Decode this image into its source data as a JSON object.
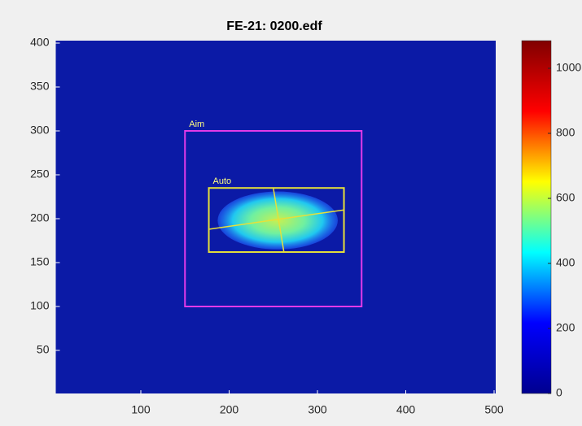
{
  "chart_data": {
    "type": "image",
    "title": "FE-21: 0200.edf",
    "xlim": [
      0,
      500
    ],
    "xticks": [
      100,
      200,
      300,
      400,
      500
    ],
    "ylim": [
      0,
      400
    ],
    "yticks": [
      50,
      100,
      150,
      200,
      250,
      300,
      350,
      400
    ],
    "background": "#0b1aa6",
    "colorbar": {
      "clim": [
        0,
        1085
      ],
      "ticks": [
        0,
        200,
        400,
        600,
        800,
        1000
      ],
      "colormap": [
        "#00008f",
        "#0000ff",
        "#00ffff",
        "#ffff00",
        "#ff0000",
        "#800000"
      ]
    },
    "spot": {
      "center": [
        255,
        198
      ],
      "radius": [
        68,
        33
      ]
    },
    "rectangles": [
      {
        "label": "Aim",
        "x": [
          150,
          350
        ],
        "y": [
          100,
          300
        ],
        "color": "#e33ae8"
      },
      {
        "label": "Auto",
        "x": [
          177,
          330
        ],
        "y": [
          162,
          235
        ],
        "color": "#e6e03a"
      }
    ],
    "lines": [
      {
        "x": [
          177,
          330
        ],
        "y": [
          188,
          210
        ],
        "color": "#e6e03a"
      },
      {
        "x": [
          250,
          262
        ],
        "y": [
          235,
          162
        ],
        "color": "#e6e03a"
      }
    ]
  }
}
